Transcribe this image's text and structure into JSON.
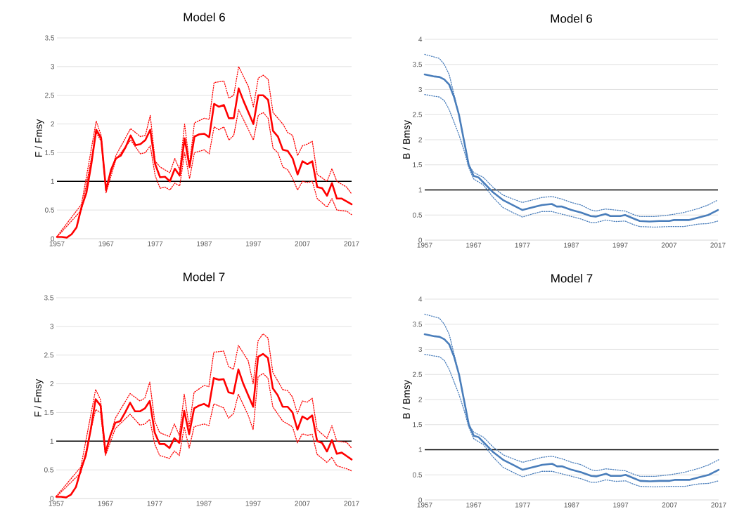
{
  "chart_data": [
    {
      "type": "line",
      "title": "Model 6",
      "ylabel": "F / Fmsy",
      "xlim": [
        1957,
        2017
      ],
      "xticks": [
        1957,
        1967,
        1977,
        1987,
        1997,
        2007,
        2017
      ],
      "ylim": [
        0,
        3.5
      ],
      "yticks": [
        0,
        0.5,
        1,
        1.5,
        2,
        2.5,
        3,
        3.5
      ],
      "grid": "y",
      "ref_lines": [
        {
          "axis": "y",
          "value": 1,
          "color": "#000000"
        }
      ],
      "series": [
        {
          "color": "#ff0000",
          "line_style": "solid",
          "x": [
            1957,
            1958,
            1959,
            1960,
            1961,
            1962,
            1963,
            1964,
            1965,
            1966,
            1967,
            1968,
            1969,
            1970,
            1971,
            1972,
            1973,
            1974,
            1975,
            1976,
            1977,
            1978,
            1979,
            1980,
            1981,
            1982,
            1983,
            1984,
            1985,
            1986,
            1987,
            1988,
            1989,
            1990,
            1991,
            1992,
            1993,
            1994,
            1995,
            1996,
            1997,
            1998,
            1999,
            2000,
            2001,
            2002,
            2003,
            2004,
            2005,
            2006,
            2007,
            2008,
            2009,
            2010,
            2011,
            2012,
            2013,
            2014,
            2015,
            2016,
            2017
          ],
          "values": [
            0.03,
            0.03,
            0.02,
            0.08,
            0.2,
            0.55,
            0.8,
            1.3,
            1.9,
            1.75,
            0.85,
            1.2,
            1.4,
            1.45,
            1.6,
            1.8,
            1.63,
            1.65,
            1.72,
            1.9,
            1.3,
            1.07,
            1.08,
            1.0,
            1.22,
            1.1,
            1.75,
            1.25,
            1.78,
            1.82,
            1.83,
            1.77,
            2.35,
            2.3,
            2.33,
            2.1,
            2.1,
            2.62,
            2.4,
            2.2,
            2.0,
            2.5,
            2.5,
            2.42,
            1.88,
            1.78,
            1.55,
            1.53,
            1.4,
            1.12,
            1.35,
            1.3,
            1.35,
            0.9,
            0.88,
            0.75,
            0.97,
            0.7,
            0.7,
            0.65,
            0.6
          ]
        },
        {
          "color": "#ff0000",
          "line_style": "dotted",
          "x": [
            1957,
            1962,
            1965,
            1966,
            1967,
            1969,
            1972,
            1974,
            1975,
            1976,
            1977,
            1978,
            1980,
            1981,
            1982,
            1983,
            1984,
            1985,
            1987,
            1988,
            1989,
            1991,
            1992,
            1993,
            1994,
            1996,
            1997,
            1998,
            1999,
            2000,
            2001,
            2003,
            2004,
            2005,
            2006,
            2007,
            2008,
            2009,
            2010,
            2012,
            2013,
            2014,
            2016,
            2017
          ],
          "values": [
            0.04,
            0.6,
            2.05,
            1.8,
            0.85,
            1.45,
            1.92,
            1.78,
            1.8,
            2.15,
            1.35,
            1.25,
            1.15,
            1.4,
            1.2,
            2.0,
            1.3,
            2.02,
            2.1,
            2.08,
            2.72,
            2.75,
            2.45,
            2.5,
            3.0,
            2.65,
            2.3,
            2.8,
            2.85,
            2.78,
            2.2,
            2.0,
            1.85,
            1.8,
            1.45,
            1.62,
            1.65,
            1.7,
            1.12,
            1.0,
            1.22,
            1.0,
            0.9,
            0.78
          ]
        },
        {
          "color": "#ff0000",
          "line_style": "dotted",
          "x": [
            1957,
            1962,
            1965,
            1966,
            1967,
            1969,
            1972,
            1974,
            1975,
            1976,
            1977,
            1978,
            1979,
            1980,
            1981,
            1982,
            1983,
            1984,
            1985,
            1987,
            1988,
            1989,
            1990,
            1991,
            1992,
            1993,
            1994,
            1996,
            1997,
            1998,
            1999,
            2000,
            2001,
            2002,
            2003,
            2004,
            2005,
            2006,
            2007,
            2008,
            2009,
            2010,
            2012,
            2013,
            2014,
            2016,
            2017
          ],
          "values": [
            0.03,
            0.5,
            1.85,
            1.7,
            0.8,
            1.38,
            1.72,
            1.48,
            1.5,
            1.62,
            1.1,
            0.88,
            0.9,
            0.85,
            0.97,
            0.92,
            1.5,
            1.05,
            1.5,
            1.55,
            1.48,
            1.95,
            1.9,
            1.95,
            1.72,
            1.8,
            2.25,
            1.9,
            1.72,
            2.15,
            2.2,
            2.1,
            1.58,
            1.5,
            1.25,
            1.2,
            1.05,
            0.85,
            1.0,
            0.98,
            1.0,
            0.7,
            0.55,
            0.7,
            0.5,
            0.48,
            0.42
          ]
        }
      ]
    },
    {
      "type": "line",
      "title": "Model 6",
      "ylabel": "B / Bmsy",
      "xlim": [
        1957,
        2017
      ],
      "xticks": [
        1957,
        1967,
        1977,
        1987,
        1997,
        2007,
        2017
      ],
      "ylim": [
        0,
        4
      ],
      "yticks": [
        0,
        0.5,
        1,
        1.5,
        2,
        2.5,
        3,
        3.5,
        4
      ],
      "grid": "y",
      "ref_lines": [
        {
          "axis": "y",
          "value": 1,
          "color": "#000000"
        }
      ],
      "series": [
        {
          "color": "#4a7ebb",
          "line_style": "solid",
          "x": [
            1957,
            1959,
            1960,
            1961,
            1962,
            1963,
            1964,
            1965,
            1966,
            1967,
            1968,
            1969,
            1970,
            1971,
            1973,
            1975,
            1977,
            1979,
            1981,
            1983,
            1984,
            1985,
            1987,
            1989,
            1991,
            1992,
            1994,
            1995,
            1997,
            1998,
            2000,
            2001,
            2003,
            2005,
            2007,
            2008,
            2011,
            2013,
            2015,
            2016,
            2017
          ],
          "values": [
            3.3,
            3.26,
            3.25,
            3.2,
            3.1,
            2.85,
            2.5,
            2.0,
            1.5,
            1.28,
            1.25,
            1.15,
            1.05,
            0.95,
            0.8,
            0.7,
            0.6,
            0.65,
            0.7,
            0.72,
            0.67,
            0.67,
            0.6,
            0.55,
            0.48,
            0.47,
            0.52,
            0.48,
            0.48,
            0.5,
            0.42,
            0.38,
            0.37,
            0.38,
            0.38,
            0.4,
            0.4,
            0.45,
            0.5,
            0.55,
            0.6
          ]
        },
        {
          "color": "#4a7ebb",
          "line_style": "dotted",
          "x": [
            1957,
            1960,
            1961,
            1962,
            1963,
            1964,
            1965,
            1966,
            1967,
            1969,
            1971,
            1973,
            1975,
            1977,
            1979,
            1981,
            1983,
            1985,
            1987,
            1989,
            1991,
            1992,
            1994,
            1996,
            1998,
            2000,
            2001,
            2004,
            2007,
            2010,
            2013,
            2015,
            2017
          ],
          "values": [
            3.7,
            3.62,
            3.5,
            3.3,
            2.9,
            2.5,
            2.0,
            1.5,
            1.35,
            1.25,
            1.05,
            0.9,
            0.82,
            0.75,
            0.8,
            0.85,
            0.87,
            0.82,
            0.75,
            0.7,
            0.6,
            0.58,
            0.62,
            0.6,
            0.58,
            0.5,
            0.47,
            0.47,
            0.5,
            0.55,
            0.63,
            0.7,
            0.8
          ]
        },
        {
          "color": "#4a7ebb",
          "line_style": "dotted",
          "x": [
            1957,
            1960,
            1961,
            1962,
            1963,
            1964,
            1965,
            1966,
            1967,
            1969,
            1971,
            1973,
            1975,
            1977,
            1979,
            1981,
            1983,
            1985,
            1987,
            1989,
            1991,
            1992,
            1994,
            1996,
            1998,
            2000,
            2001,
            2004,
            2007,
            2010,
            2013,
            2015,
            2017
          ],
          "values": [
            2.9,
            2.85,
            2.78,
            2.6,
            2.35,
            2.1,
            1.8,
            1.45,
            1.22,
            1.1,
            0.85,
            0.65,
            0.55,
            0.46,
            0.52,
            0.57,
            0.57,
            0.52,
            0.47,
            0.42,
            0.35,
            0.35,
            0.4,
            0.37,
            0.38,
            0.3,
            0.27,
            0.26,
            0.27,
            0.27,
            0.32,
            0.33,
            0.38
          ]
        }
      ]
    },
    {
      "type": "line",
      "title": "Model 7",
      "ylabel": "F / Fmsy",
      "xlim": [
        1957,
        2017
      ],
      "xticks": [
        1957,
        1967,
        1977,
        1987,
        1997,
        2007,
        2017
      ],
      "ylim": [
        0,
        3.5
      ],
      "yticks": [
        0,
        0.5,
        1,
        1.5,
        2,
        2.5,
        3,
        3.5
      ],
      "grid": "y",
      "ref_lines": [
        {
          "axis": "y",
          "value": 1,
          "color": "#000000"
        }
      ],
      "series": [
        {
          "color": "#ff0000",
          "line_style": "solid",
          "x": [
            1957,
            1958,
            1959,
            1960,
            1961,
            1962,
            1963,
            1964,
            1965,
            1966,
            1967,
            1968,
            1969,
            1970,
            1971,
            1972,
            1973,
            1974,
            1975,
            1976,
            1977,
            1978,
            1979,
            1980,
            1981,
            1982,
            1983,
            1984,
            1985,
            1986,
            1987,
            1988,
            1989,
            1990,
            1991,
            1992,
            1993,
            1994,
            1995,
            1996,
            1997,
            1998,
            1999,
            2000,
            2001,
            2002,
            2003,
            2004,
            2005,
            2006,
            2007,
            2008,
            2009,
            2010,
            2011,
            2012,
            2013,
            2014,
            2015,
            2016,
            2017
          ],
          "values": [
            0.03,
            0.03,
            0.02,
            0.07,
            0.2,
            0.5,
            0.75,
            1.2,
            1.73,
            1.62,
            0.8,
            1.1,
            1.32,
            1.35,
            1.5,
            1.67,
            1.52,
            1.52,
            1.57,
            1.7,
            1.15,
            0.95,
            0.95,
            0.88,
            1.05,
            0.97,
            1.53,
            1.12,
            1.57,
            1.62,
            1.65,
            1.6,
            2.1,
            2.07,
            2.08,
            1.85,
            1.83,
            2.25,
            2.0,
            1.8,
            1.6,
            2.47,
            2.52,
            2.45,
            1.92,
            1.8,
            1.6,
            1.6,
            1.5,
            1.2,
            1.43,
            1.38,
            1.45,
            1.0,
            0.97,
            0.82,
            1.02,
            0.78,
            0.8,
            0.74,
            0.68
          ]
        },
        {
          "color": "#ff0000",
          "line_style": "dotted",
          "x": [
            1957,
            1962,
            1965,
            1966,
            1967,
            1969,
            1972,
            1974,
            1975,
            1976,
            1977,
            1978,
            1980,
            1981,
            1982,
            1983,
            1984,
            1985,
            1987,
            1988,
            1989,
            1991,
            1992,
            1993,
            1994,
            1996,
            1997,
            1998,
            1999,
            2000,
            2001,
            2003,
            2004,
            2005,
            2006,
            2007,
            2008,
            2009,
            2010,
            2012,
            2013,
            2014,
            2016,
            2017
          ],
          "values": [
            0.04,
            0.55,
            1.9,
            1.72,
            0.8,
            1.4,
            1.83,
            1.7,
            1.75,
            2.03,
            1.35,
            1.15,
            1.08,
            1.3,
            1.1,
            1.82,
            1.25,
            1.85,
            1.97,
            1.95,
            2.55,
            2.57,
            2.3,
            2.25,
            2.67,
            2.4,
            2.0,
            2.75,
            2.87,
            2.8,
            2.2,
            1.9,
            1.88,
            1.77,
            1.48,
            1.7,
            1.68,
            1.75,
            1.2,
            1.05,
            1.27,
            1.0,
            0.98,
            0.88
          ]
        },
        {
          "color": "#ff0000",
          "line_style": "dotted",
          "x": [
            1957,
            1962,
            1965,
            1966,
            1967,
            1969,
            1972,
            1974,
            1975,
            1976,
            1977,
            1978,
            1980,
            1981,
            1982,
            1983,
            1984,
            1985,
            1987,
            1988,
            1989,
            1991,
            1992,
            1993,
            1994,
            1996,
            1997,
            1998,
            1999,
            2000,
            2001,
            2003,
            2004,
            2005,
            2006,
            2007,
            2008,
            2009,
            2010,
            2012,
            2013,
            2014,
            2016,
            2017
          ],
          "values": [
            0.03,
            0.45,
            1.55,
            1.5,
            0.75,
            1.22,
            1.47,
            1.28,
            1.3,
            1.38,
            0.95,
            0.75,
            0.7,
            0.83,
            0.75,
            1.25,
            0.88,
            1.25,
            1.3,
            1.27,
            1.65,
            1.58,
            1.4,
            1.48,
            1.82,
            1.45,
            1.2,
            2.12,
            2.18,
            2.1,
            1.6,
            1.35,
            1.3,
            1.25,
            0.97,
            1.13,
            1.1,
            1.12,
            0.77,
            0.63,
            0.72,
            0.57,
            0.52,
            0.48
          ]
        }
      ]
    },
    {
      "type": "line",
      "title": "Model 7",
      "ylabel": "B / Bmsy",
      "xlim": [
        1957,
        2017
      ],
      "xticks": [
        1957,
        1967,
        1977,
        1987,
        1997,
        2007,
        2017
      ],
      "ylim": [
        0,
        4
      ],
      "yticks": [
        0,
        0.5,
        1,
        1.5,
        2,
        2.5,
        3,
        3.5,
        4
      ],
      "grid": "y",
      "ref_lines": [
        {
          "axis": "y",
          "value": 1,
          "color": "#000000"
        }
      ],
      "series": [
        {
          "color": "#4a7ebb",
          "line_style": "solid",
          "x": [
            1957,
            1959,
            1960,
            1961,
            1962,
            1963,
            1964,
            1965,
            1966,
            1967,
            1968,
            1969,
            1970,
            1971,
            1973,
            1975,
            1977,
            1979,
            1981,
            1983,
            1984,
            1985,
            1987,
            1989,
            1991,
            1992,
            1994,
            1995,
            1997,
            1998,
            2000,
            2001,
            2003,
            2005,
            2007,
            2008,
            2011,
            2013,
            2015,
            2016,
            2017
          ],
          "values": [
            3.3,
            3.26,
            3.25,
            3.2,
            3.1,
            2.85,
            2.5,
            2.0,
            1.5,
            1.28,
            1.25,
            1.15,
            1.05,
            0.95,
            0.8,
            0.7,
            0.6,
            0.65,
            0.7,
            0.72,
            0.67,
            0.67,
            0.6,
            0.55,
            0.48,
            0.47,
            0.52,
            0.48,
            0.48,
            0.5,
            0.42,
            0.38,
            0.37,
            0.38,
            0.38,
            0.4,
            0.4,
            0.45,
            0.5,
            0.55,
            0.6
          ]
        },
        {
          "color": "#4a7ebb",
          "line_style": "dotted",
          "x": [
            1957,
            1960,
            1961,
            1962,
            1963,
            1964,
            1965,
            1966,
            1967,
            1969,
            1971,
            1973,
            1975,
            1977,
            1979,
            1981,
            1983,
            1985,
            1987,
            1989,
            1991,
            1992,
            1994,
            1996,
            1998,
            2000,
            2001,
            2004,
            2007,
            2010,
            2013,
            2015,
            2017
          ],
          "values": [
            3.7,
            3.62,
            3.5,
            3.3,
            2.9,
            2.5,
            2.0,
            1.5,
            1.35,
            1.25,
            1.05,
            0.9,
            0.82,
            0.75,
            0.8,
            0.85,
            0.87,
            0.82,
            0.75,
            0.7,
            0.6,
            0.58,
            0.62,
            0.6,
            0.58,
            0.5,
            0.47,
            0.47,
            0.5,
            0.55,
            0.63,
            0.7,
            0.8
          ]
        },
        {
          "color": "#4a7ebb",
          "line_style": "dotted",
          "x": [
            1957,
            1960,
            1961,
            1962,
            1963,
            1964,
            1965,
            1966,
            1967,
            1969,
            1971,
            1973,
            1975,
            1977,
            1979,
            1981,
            1983,
            1985,
            1987,
            1989,
            1991,
            1992,
            1994,
            1996,
            1998,
            2000,
            2001,
            2004,
            2007,
            2010,
            2013,
            2015,
            2017
          ],
          "values": [
            2.9,
            2.85,
            2.78,
            2.6,
            2.35,
            2.1,
            1.8,
            1.45,
            1.22,
            1.1,
            0.85,
            0.65,
            0.55,
            0.46,
            0.52,
            0.57,
            0.57,
            0.52,
            0.47,
            0.42,
            0.35,
            0.35,
            0.4,
            0.37,
            0.38,
            0.3,
            0.27,
            0.26,
            0.27,
            0.27,
            0.32,
            0.33,
            0.38
          ]
        }
      ]
    }
  ]
}
